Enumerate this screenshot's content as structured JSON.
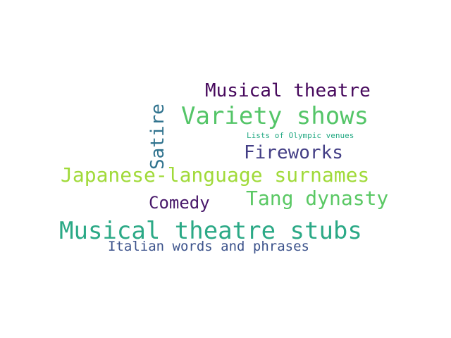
{
  "words": [
    {
      "text": "Musical theatre stubs",
      "color": "#2ba986"
    },
    {
      "text": "Variety shows",
      "color": "#54c568"
    },
    {
      "text": "Japanese-language surnames",
      "color": "#a0da39"
    },
    {
      "text": "Musical theatre",
      "color": "#46085c"
    },
    {
      "text": "Tang dynasty",
      "color": "#5ac864"
    },
    {
      "text": "Fireworks",
      "color": "#433e85"
    },
    {
      "text": "Satire",
      "color": "#30738e"
    },
    {
      "text": "Comedy",
      "color": "#48186a"
    },
    {
      "text": "Italian words and phrases",
      "color": "#3b528b"
    },
    {
      "text": "Lists of Olympic venues",
      "color": "#23a983"
    }
  ]
}
